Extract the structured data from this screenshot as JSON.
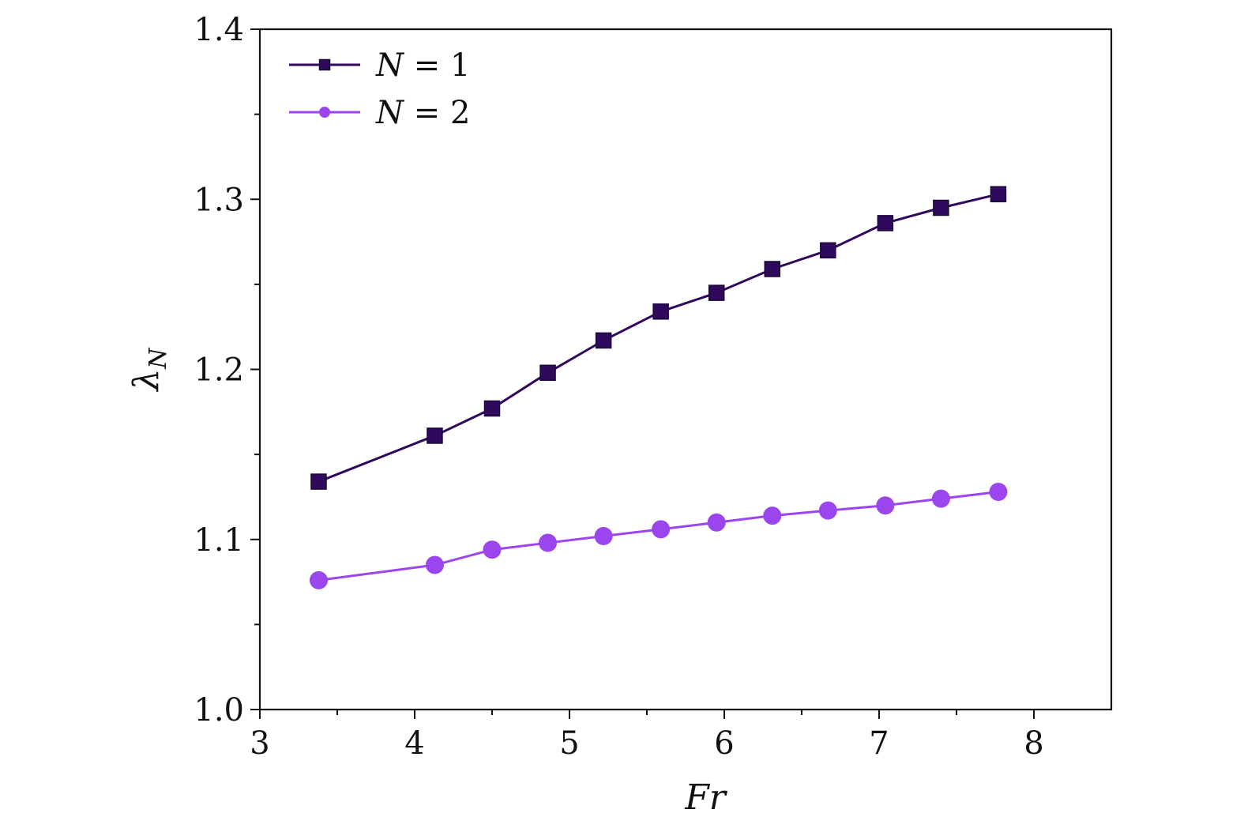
{
  "chart_data": {
    "type": "line",
    "xlabel": "Fr",
    "ylabel": "λN",
    "ylabel_main": "λ",
    "ylabel_sub": "N",
    "xlim": [
      3,
      8.5
    ],
    "ylim": [
      1.0,
      1.4
    ],
    "xticks": [
      3,
      4,
      5,
      6,
      7,
      8
    ],
    "xticklabels": [
      "3",
      "4",
      "5",
      "6",
      "7",
      "8"
    ],
    "xminor": [
      3.5,
      4.5,
      5.5,
      6.5,
      7.5
    ],
    "yticks": [
      1.0,
      1.1,
      1.2,
      1.3,
      1.4
    ],
    "yticklabels": [
      "1.0",
      "1.1",
      "1.2",
      "1.3",
      "1.4"
    ],
    "yminor": [
      1.05,
      1.15,
      1.25,
      1.35
    ],
    "grid": false,
    "legend_position": "top-left",
    "series": [
      {
        "name": "N = 1",
        "legend_italic": "N",
        "legend_rest": " = 1",
        "color": "#2f0a5c",
        "marker": "square",
        "x": [
          3.38,
          4.13,
          4.5,
          4.86,
          5.22,
          5.59,
          5.95,
          6.31,
          6.67,
          7.04,
          7.4,
          7.77
        ],
        "values": [
          1.134,
          1.161,
          1.177,
          1.198,
          1.217,
          1.234,
          1.245,
          1.259,
          1.27,
          1.286,
          1.295,
          1.303
        ]
      },
      {
        "name": "N = 2",
        "legend_italic": "N",
        "legend_rest": " = 2",
        "color": "#9b45ee",
        "marker": "circle",
        "x": [
          3.38,
          4.13,
          4.5,
          4.86,
          5.22,
          5.59,
          5.95,
          6.31,
          6.67,
          7.04,
          7.4,
          7.77
        ],
        "values": [
          1.076,
          1.085,
          1.094,
          1.098,
          1.102,
          1.106,
          1.11,
          1.114,
          1.117,
          1.12,
          1.124,
          1.128
        ]
      }
    ]
  }
}
